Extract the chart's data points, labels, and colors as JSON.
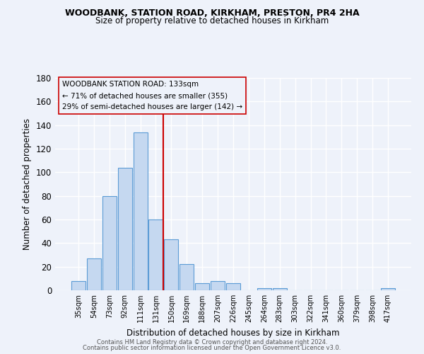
{
  "title1": "WOODBANK, STATION ROAD, KIRKHAM, PRESTON, PR4 2HA",
  "title2": "Size of property relative to detached houses in Kirkham",
  "xlabel": "Distribution of detached houses by size in Kirkham",
  "ylabel": "Number of detached properties",
  "categories": [
    "35sqm",
    "54sqm",
    "73sqm",
    "92sqm",
    "111sqm",
    "131sqm",
    "150sqm",
    "169sqm",
    "188sqm",
    "207sqm",
    "226sqm",
    "245sqm",
    "264sqm",
    "283sqm",
    "303sqm",
    "322sqm",
    "341sqm",
    "360sqm",
    "379sqm",
    "398sqm",
    "417sqm"
  ],
  "values": [
    8,
    27,
    80,
    104,
    134,
    60,
    43,
    22,
    6,
    8,
    6,
    0,
    2,
    2,
    0,
    0,
    0,
    0,
    0,
    0,
    2
  ],
  "bar_color": "#c5d8f0",
  "bar_edge_color": "#5b9bd5",
  "ylim": [
    0,
    180
  ],
  "yticks": [
    0,
    20,
    40,
    60,
    80,
    100,
    120,
    140,
    160,
    180
  ],
  "vline_x_index": 5,
  "vline_color": "#cc0000",
  "annotation_title": "WOODBANK STATION ROAD: 133sqm",
  "annotation_line1": "← 71% of detached houses are smaller (355)",
  "annotation_line2": "29% of semi-detached houses are larger (142) →",
  "footer1": "Contains HM Land Registry data © Crown copyright and database right 2024.",
  "footer2": "Contains public sector information licensed under the Open Government Licence v3.0.",
  "bg_color": "#eef2fa",
  "grid_color": "#ffffff"
}
